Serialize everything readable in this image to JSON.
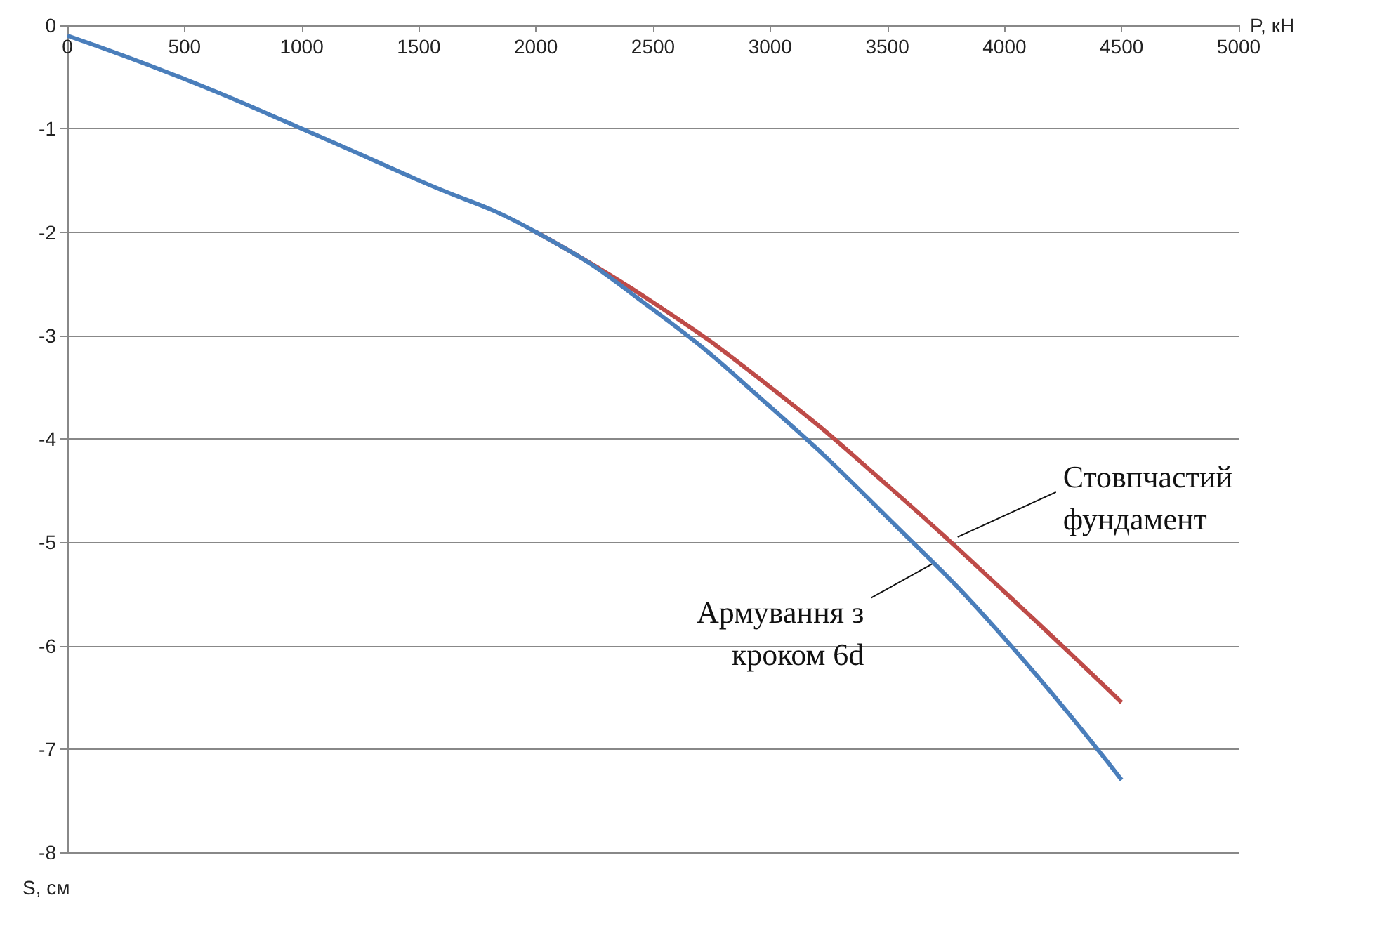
{
  "chart_data": {
    "type": "line",
    "xlabel": "P, кН",
    "ylabel": "S, см",
    "x": [
      0,
      500,
      1000,
      1500,
      2000,
      2500,
      3000,
      3500,
      4000,
      4500
    ],
    "series": [
      {
        "color": "#be4b48",
        "values": [
          null,
          null,
          null,
          null,
          -2.0,
          -2.68,
          -3.5,
          -4.45,
          -5.48,
          -6.55
        ]
      },
      {
        "color": "#4a7ebb",
        "values": [
          -0.1,
          -0.52,
          -1.0,
          -1.5,
          -2.0,
          -2.75,
          -3.69,
          -4.76,
          -5.93,
          -7.3
        ]
      }
    ],
    "xlim": [
      0,
      5000
    ],
    "xticks": [
      0,
      500,
      1000,
      1500,
      2000,
      2500,
      3000,
      3500,
      4000,
      4500,
      5000
    ],
    "ylim": [
      -8,
      0
    ],
    "yticks": [
      -8,
      -7,
      -6,
      -5,
      -4,
      -3,
      -2,
      -1,
      0
    ],
    "grid": "y",
    "marker": "none",
    "annotations": [
      {
        "text": "Стовпчастий\nфундамент",
        "x": 3800,
        "y": -4.95
      },
      {
        "text": "Армування з\nкроком 6d",
        "x": 3700,
        "y": -5.2
      }
    ]
  }
}
